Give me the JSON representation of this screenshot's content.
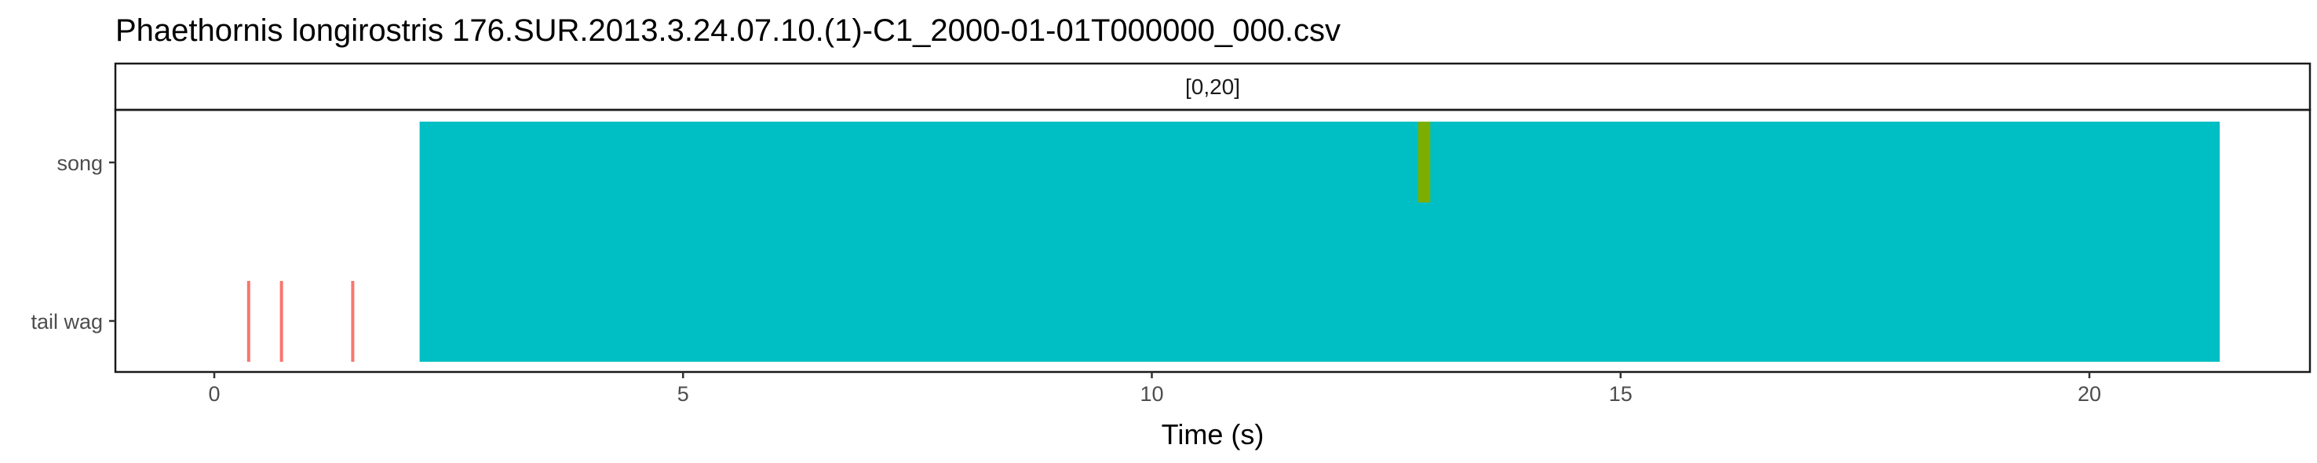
{
  "chart_data": {
    "type": "timeline",
    "title": "Phaethornis longirostris   176.SUR.2013.3.24.07.10.(1)-C1_2000-01-01T000000_000.csv",
    "facet_label": "[0,20]",
    "xlabel": "Time (s)",
    "ylabel": "",
    "xlim": [
      -1.1,
      22.4
    ],
    "x_ticks": [
      0,
      5,
      10,
      15,
      20
    ],
    "x_tick_labels": [
      "0",
      "5",
      "10",
      "15",
      "20"
    ],
    "categories": [
      "tail wag",
      "song"
    ],
    "grid": false,
    "series": [
      {
        "color": "#F8766D",
        "category": "tail wag",
        "segments": [
          {
            "start": 0.35,
            "end": 0.38
          },
          {
            "start": 0.7,
            "end": 0.73
          },
          {
            "start": 1.46,
            "end": 1.49
          }
        ]
      },
      {
        "color": "#00BFC4",
        "category": "both",
        "segments": [
          {
            "start": 2.19,
            "end": 21.39
          }
        ]
      },
      {
        "color": "#7CAE00",
        "category": "song",
        "segments": [
          {
            "start": 12.84,
            "end": 12.97
          }
        ]
      }
    ]
  }
}
